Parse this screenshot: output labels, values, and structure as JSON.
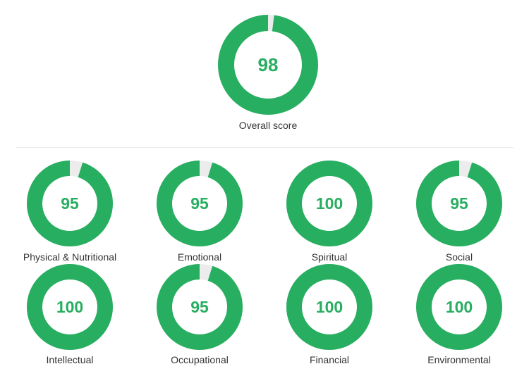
{
  "colors": {
    "score": "#27ae60",
    "remainder": "#ececec",
    "label_text": "#333333"
  },
  "overall": {
    "label": "Overall score",
    "value": 98,
    "max": 100
  },
  "chart_data": [
    {
      "type": "pie",
      "style": "donut",
      "title": "Overall score",
      "max": 100,
      "values": [
        98
      ]
    },
    {
      "type": "pie",
      "style": "donut",
      "max": 100,
      "categories": [
        "Physical & Nutritional",
        "Emotional",
        "Spiritual",
        "Social",
        "Intellectual",
        "Occupational",
        "Financial",
        "Environmental"
      ],
      "values": [
        95,
        95,
        100,
        95,
        100,
        95,
        100,
        100
      ]
    }
  ],
  "dimensions": [
    {
      "label": "Physical & Nutritional",
      "value": 95
    },
    {
      "label": "Emotional",
      "value": 95
    },
    {
      "label": "Spiritual",
      "value": 100
    },
    {
      "label": "Social",
      "value": 95
    },
    {
      "label": "Intellectual",
      "value": 100
    },
    {
      "label": "Occupational",
      "value": 95
    },
    {
      "label": "Financial",
      "value": 100
    },
    {
      "label": "Environmental",
      "value": 100
    }
  ]
}
